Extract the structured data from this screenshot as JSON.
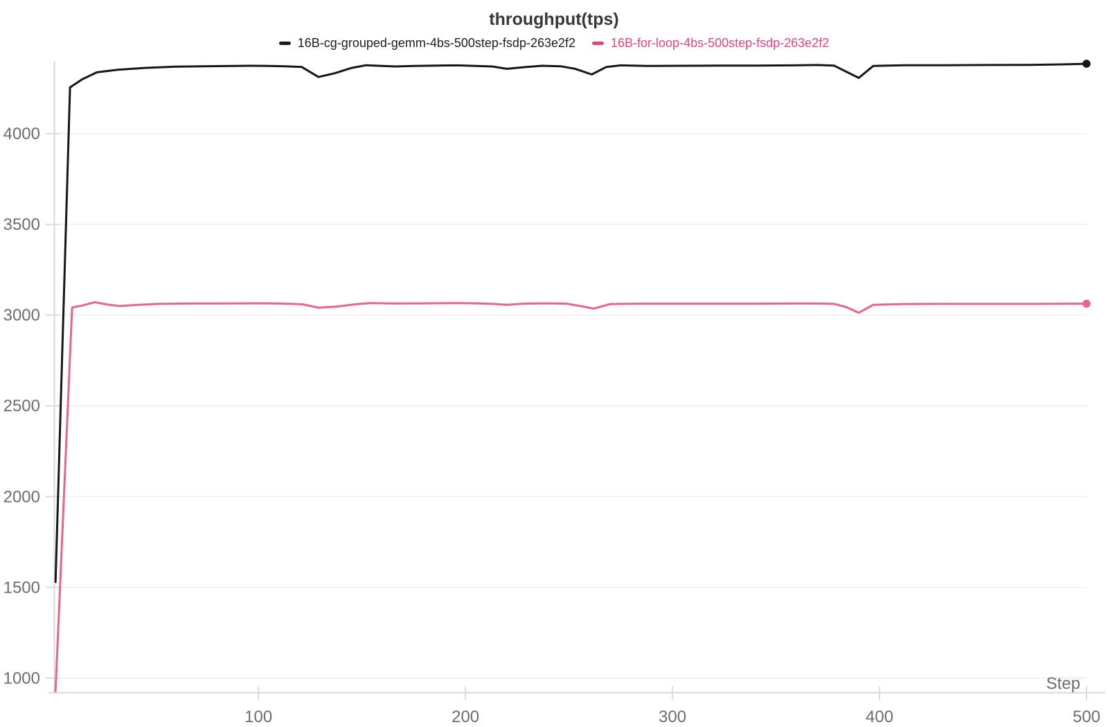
{
  "title": "throughput(tps)",
  "legend": [
    {
      "label": "16B-cg-grouped-gemm-4bs-500step-fsdp-263e2f2",
      "color": "#1c1c1c"
    },
    {
      "label": "16B-for-loop-4bs-500step-fsdp-263e2f2",
      "color": "#e2467a"
    }
  ],
  "colors": {
    "background": "#ffffff",
    "gridline": "#eeeeef",
    "axis_line": "#d8d8dc",
    "tick_mark": "#dcdce0",
    "tick_label": "#6c6c78",
    "title_text": "#35383c"
  },
  "chart_data": {
    "type": "line",
    "title": "throughput(tps)",
    "xlabel": "Step",
    "ylabel": "",
    "xlim": [
      0,
      500
    ],
    "ylim": [
      900,
      4450
    ],
    "x_ticks": [
      100,
      200,
      300,
      400,
      500
    ],
    "y_ticks": [
      1000,
      1500,
      2000,
      2500,
      3000,
      3500,
      4000
    ],
    "grid": "horizontal-only",
    "legend_position": "top-center",
    "series": [
      {
        "name": "16B-cg-grouped-gemm-4bs-500step-fsdp-263e2f2",
        "id": "cg-grouped-gemm",
        "color": "#161616",
        "endpoint_dot": true,
        "points": [
          [
            2,
            1530
          ],
          [
            9,
            4255
          ],
          [
            15,
            4300
          ],
          [
            22,
            4338
          ],
          [
            32,
            4352
          ],
          [
            45,
            4362
          ],
          [
            60,
            4369
          ],
          [
            80,
            4372
          ],
          [
            95,
            4374
          ],
          [
            105,
            4373
          ],
          [
            113,
            4371
          ],
          [
            121,
            4367
          ],
          [
            129,
            4312
          ],
          [
            137,
            4333
          ],
          [
            145,
            4362
          ],
          [
            152,
            4377
          ],
          [
            158,
            4374
          ],
          [
            166,
            4370
          ],
          [
            175,
            4373
          ],
          [
            186,
            4375
          ],
          [
            196,
            4376
          ],
          [
            205,
            4373
          ],
          [
            213,
            4370
          ],
          [
            220,
            4357
          ],
          [
            228,
            4366
          ],
          [
            237,
            4374
          ],
          [
            246,
            4371
          ],
          [
            253,
            4357
          ],
          [
            261,
            4326
          ],
          [
            268,
            4367
          ],
          [
            275,
            4376
          ],
          [
            288,
            4373
          ],
          [
            305,
            4374
          ],
          [
            322,
            4375
          ],
          [
            340,
            4375
          ],
          [
            358,
            4376
          ],
          [
            370,
            4378
          ],
          [
            378,
            4375
          ],
          [
            384,
            4341
          ],
          [
            390,
            4307
          ],
          [
            397,
            4373
          ],
          [
            412,
            4377
          ],
          [
            432,
            4377
          ],
          [
            452,
            4378
          ],
          [
            472,
            4379
          ],
          [
            490,
            4382
          ],
          [
            500,
            4385
          ]
        ]
      },
      {
        "name": "16B-for-loop-4bs-500step-fsdp-263e2f2",
        "id": "for-loop",
        "color": "#e8648e",
        "endpoint_dot": true,
        "points": [
          [
            2,
            928
          ],
          [
            10,
            3042
          ],
          [
            15,
            3053
          ],
          [
            21,
            3071
          ],
          [
            27,
            3058
          ],
          [
            33,
            3050
          ],
          [
            42,
            3057
          ],
          [
            52,
            3062
          ],
          [
            65,
            3064
          ],
          [
            80,
            3064
          ],
          [
            95,
            3065
          ],
          [
            105,
            3065
          ],
          [
            113,
            3063
          ],
          [
            121,
            3060
          ],
          [
            129,
            3041
          ],
          [
            138,
            3047
          ],
          [
            147,
            3060
          ],
          [
            154,
            3066
          ],
          [
            166,
            3064
          ],
          [
            180,
            3065
          ],
          [
            196,
            3066
          ],
          [
            205,
            3065
          ],
          [
            213,
            3062
          ],
          [
            220,
            3057
          ],
          [
            228,
            3063
          ],
          [
            240,
            3065
          ],
          [
            249,
            3063
          ],
          [
            256,
            3049
          ],
          [
            262,
            3036
          ],
          [
            270,
            3061
          ],
          [
            285,
            3063
          ],
          [
            305,
            3063
          ],
          [
            322,
            3063
          ],
          [
            340,
            3063
          ],
          [
            358,
            3064
          ],
          [
            370,
            3064
          ],
          [
            378,
            3062
          ],
          [
            384,
            3044
          ],
          [
            390,
            3013
          ],
          [
            397,
            3057
          ],
          [
            412,
            3061
          ],
          [
            432,
            3062
          ],
          [
            455,
            3062
          ],
          [
            478,
            3062
          ],
          [
            500,
            3063
          ]
        ]
      }
    ]
  }
}
